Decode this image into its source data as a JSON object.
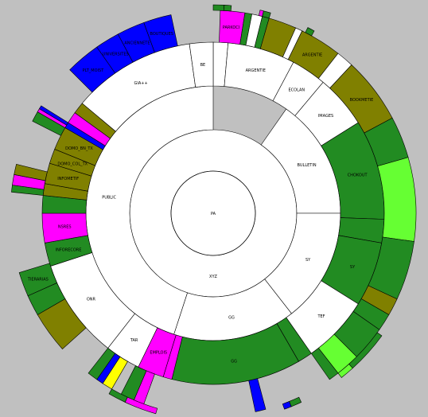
{
  "colors": {
    "background": "#c0c0c0",
    "white": "#ffffff",
    "green": "#228b22",
    "olive": "#808000",
    "magenta": "#ff00ff",
    "blue": "#0000ff",
    "yellow": "#ffff00",
    "lime": "#66ff33",
    "dark_green": "#006400",
    "stroke": "#000000"
  },
  "rings": {
    "root": {
      "label": "PA"
    },
    "level1": [
      {
        "label": "XYZ",
        "start": 0,
        "end": 360,
        "color": "white"
      }
    ],
    "level2": [
      {
        "label": "BULLETIN",
        "start": 35,
        "end": 90,
        "color": "white"
      },
      {
        "label": "SY",
        "start": 90,
        "end": 142,
        "color": "white"
      },
      {
        "label": "GG",
        "start": 142,
        "end": 198,
        "color": "white"
      },
      {
        "label": "PUBLIC",
        "start": 198,
        "end": 360,
        "color": "white"
      }
    ],
    "level3": [
      {
        "label": "",
        "start": 0,
        "end": 5,
        "color": "white"
      },
      {
        "label": "ARGENTIE",
        "start": 5,
        "end": 28,
        "color": "white"
      },
      {
        "label": "ECOLAN",
        "start": 28,
        "end": 40,
        "color": "white"
      },
      {
        "label": "IMAGES",
        "start": 40,
        "end": 58,
        "color": "white"
      },
      {
        "label": "CHOKOUT",
        "start": 58,
        "end": 92,
        "color": "green"
      },
      {
        "label": "",
        "start": 92,
        "end": 100,
        "color": "green"
      },
      {
        "label": "SY",
        "start": 100,
        "end": 122,
        "color": "green"
      },
      {
        "label": "TEF",
        "start": 122,
        "end": 145,
        "color": "white"
      },
      {
        "label": "",
        "start": 145,
        "end": 150,
        "color": "green"
      },
      {
        "label": "GG",
        "start": 150,
        "end": 194,
        "color": "green"
      },
      {
        "label": "",
        "start": 194,
        "end": 197,
        "color": "magenta"
      },
      {
        "label": "EMPLOIS",
        "start": 197,
        "end": 206,
        "color": "magenta"
      },
      {
        "label": "TAR",
        "start": 206,
        "end": 218,
        "color": "white"
      },
      {
        "label": "ONR",
        "start": 218,
        "end": 252,
        "color": "white"
      },
      {
        "label": "INFORECORE",
        "start": 252,
        "end": 260,
        "color": "green"
      },
      {
        "label": "NSRES",
        "start": 260,
        "end": 270,
        "color": "magenta"
      },
      {
        "label": "",
        "start": 270,
        "end": 276,
        "color": "green"
      },
      {
        "label": "",
        "start": 276,
        "end": 280,
        "color": "olive"
      },
      {
        "label": "INFOMETIF",
        "start": 280,
        "end": 287,
        "color": "olive"
      },
      {
        "label": "DOMO_COL_TX",
        "start": 287,
        "end": 292,
        "color": "olive"
      },
      {
        "label": "DOMO_BN_TX",
        "start": 292,
        "end": 300,
        "color": "olive"
      },
      {
        "label": "",
        "start": 300,
        "end": 302,
        "color": "blue"
      },
      {
        "label": "",
        "start": 302,
        "end": 306,
        "color": "magenta"
      },
      {
        "label": "",
        "start": 306,
        "end": 310,
        "color": "olive"
      },
      {
        "label": "GIA++",
        "start": 310,
        "end": 352,
        "color": "white"
      },
      {
        "label": "BE",
        "start": 352,
        "end": 360,
        "color": "white"
      }
    ],
    "level4": [
      {
        "label": "PARKOCI",
        "start": 2,
        "end": 9,
        "color": "magenta"
      },
      {
        "label": "",
        "start": 9,
        "end": 11,
        "color": "green"
      },
      {
        "label": "",
        "start": 11,
        "end": 14,
        "color": "white"
      },
      {
        "label": "",
        "start": 14,
        "end": 16,
        "color": "green"
      },
      {
        "label": "",
        "start": 16,
        "end": 24,
        "color": "olive"
      },
      {
        "label": "",
        "start": 24,
        "end": 26,
        "color": "white"
      },
      {
        "label": "ARGENTIE",
        "start": 26,
        "end": 38,
        "color": "olive"
      },
      {
        "label": "",
        "start": 38,
        "end": 43,
        "color": "white"
      },
      {
        "label": "BOOKMETIE",
        "start": 43,
        "end": 62,
        "color": "olive"
      },
      {
        "label": "",
        "start": 62,
        "end": 74,
        "color": "green"
      },
      {
        "label": "",
        "start": 74,
        "end": 98,
        "color": "lime"
      },
      {
        "label": "",
        "start": 98,
        "end": 115,
        "color": "green"
      },
      {
        "label": "",
        "start": 115,
        "end": 120,
        "color": "olive"
      },
      {
        "label": "",
        "start": 120,
        "end": 125,
        "color": "green"
      },
      {
        "label": "",
        "start": 125,
        "end": 135,
        "color": "green"
      },
      {
        "label": "",
        "start": 135,
        "end": 142,
        "color": "lime"
      },
      {
        "label": "",
        "start": 142,
        "end": 145,
        "color": "green"
      },
      {
        "label": "",
        "start": 165,
        "end": 168,
        "color": "blue"
      },
      {
        "label": "",
        "start": 200,
        "end": 203,
        "color": "magenta"
      },
      {
        "label": "",
        "start": 203,
        "end": 207,
        "color": "green"
      },
      {
        "label": "",
        "start": 210,
        "end": 213,
        "color": "yellow"
      },
      {
        "label": "",
        "start": 213,
        "end": 215,
        "color": "blue"
      },
      {
        "label": "",
        "start": 215,
        "end": 218,
        "color": "green"
      },
      {
        "label": "",
        "start": 228,
        "end": 240,
        "color": "olive"
      },
      {
        "label": "",
        "start": 240,
        "end": 246,
        "color": "green"
      },
      {
        "label": "TIERARIAS",
        "start": 246,
        "end": 253,
        "color": "green"
      },
      {
        "label": "",
        "start": 276,
        "end": 278,
        "color": "green"
      },
      {
        "label": "",
        "start": 278,
        "end": 281,
        "color": "magenta"
      },
      {
        "label": "",
        "start": 281,
        "end": 284,
        "color": "olive"
      },
      {
        "label": "",
        "start": 297,
        "end": 300,
        "color": "green"
      },
      {
        "label": "",
        "start": 300,
        "end": 301,
        "color": "magenta"
      },
      {
        "label": "",
        "start": 301,
        "end": 302,
        "color": "blue"
      },
      {
        "label": "PLT_MOIST",
        "start": 315,
        "end": 325,
        "color": "blue"
      },
      {
        "label": "UNIVERSITES",
        "start": 325,
        "end": 332,
        "color": "blue"
      },
      {
        "label": "ANCIENNETE",
        "start": 332,
        "end": 340,
        "color": "blue"
      },
      {
        "label": "BOUTIQUES",
        "start": 340,
        "end": 348,
        "color": "blue"
      }
    ],
    "level5": [
      {
        "label": "",
        "start": 0,
        "end": 3,
        "color": "green"
      },
      {
        "label": "",
        "start": 3,
        "end": 5,
        "color": "green"
      },
      {
        "label": "",
        "start": 13,
        "end": 14,
        "color": "magenta"
      },
      {
        "label": "",
        "start": 14,
        "end": 16,
        "color": "green"
      },
      {
        "label": "",
        "start": 27,
        "end": 29,
        "color": "green"
      },
      {
        "label": "",
        "start": 126,
        "end": 138,
        "color": "green"
      },
      {
        "label": "",
        "start": 138,
        "end": 142,
        "color": "lime"
      },
      {
        "label": "",
        "start": 155,
        "end": 158,
        "color": "green"
      },
      {
        "label": "",
        "start": 158,
        "end": 160,
        "color": "blue"
      },
      {
        "label": "",
        "start": 196,
        "end": 205,
        "color": "magenta"
      },
      {
        "label": "",
        "start": 205,
        "end": 210,
        "color": "green"
      }
    ]
  }
}
